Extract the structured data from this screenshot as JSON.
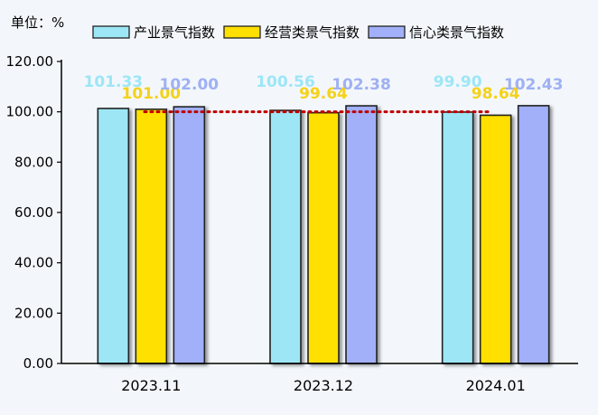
{
  "unit_label": "单位：%",
  "colors": {
    "background": "#f3f7fb",
    "reference_line": "#c00000",
    "axis": "#000000",
    "bar_stroke": "#222222"
  },
  "chart_data": {
    "type": "bar",
    "categories": [
      "2023.11",
      "2023.12",
      "2024.01"
    ],
    "series": [
      {
        "name": "产业景气指数",
        "values": [
          101.33,
          100.56,
          99.9
        ],
        "labels": [
          "101.33",
          "100.56",
          "99.90"
        ],
        "color": "#9de6f6",
        "label_color": "#9de6f6"
      },
      {
        "name": "经营类景气指数",
        "values": [
          101.0,
          99.64,
          98.64
        ],
        "labels": [
          "101.00",
          "99.64",
          "98.64"
        ],
        "color": "#ffe000",
        "label_color": "#f4d21a"
      },
      {
        "name": "信心类景气指数",
        "values": [
          102.0,
          102.38,
          102.43
        ],
        "labels": [
          "102.00",
          "102.38",
          "102.43"
        ],
        "color": "#a1b0f8",
        "label_color": "#9fb0f4"
      }
    ],
    "yticks": [
      "0.00",
      "20.00",
      "40.00",
      "60.00",
      "80.00",
      "100.00",
      "120.00"
    ],
    "ylim": [
      0,
      120
    ],
    "reference_value": 100,
    "grid": false,
    "legend_position": "top",
    "title": "",
    "xlabel": "",
    "ylabel": ""
  }
}
